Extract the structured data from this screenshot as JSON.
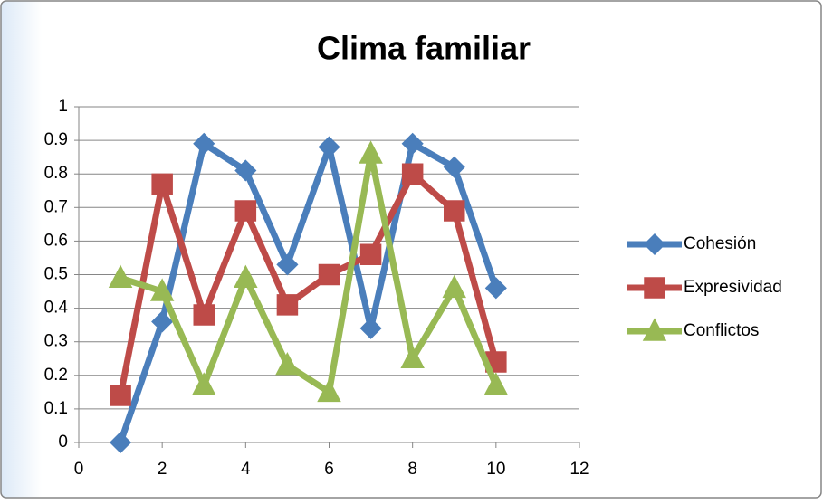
{
  "chart_data": {
    "type": "line",
    "title": "Clima familiar",
    "x": [
      1,
      2,
      3,
      4,
      5,
      6,
      7,
      8,
      9,
      10
    ],
    "series": [
      {
        "name": "Cohesión",
        "color": "#4a7ebb",
        "marker": "diamond",
        "values": [
          0,
          0.36,
          0.89,
          0.81,
          0.53,
          0.88,
          0.34,
          0.89,
          0.82,
          0.46
        ]
      },
      {
        "name": "Expresividad",
        "color": "#be4b48",
        "marker": "square",
        "values": [
          0.14,
          0.77,
          0.38,
          0.69,
          0.41,
          0.5,
          0.56,
          0.8,
          0.69,
          0.24
        ]
      },
      {
        "name": "Conflictos",
        "color": "#98b954",
        "marker": "triangle",
        "values": [
          0.49,
          0.45,
          0.17,
          0.49,
          0.23,
          0.15,
          0.86,
          0.25,
          0.46,
          0.17
        ]
      }
    ],
    "xlim": [
      0,
      12
    ],
    "xticks": [
      0,
      2,
      4,
      6,
      8,
      10,
      12
    ],
    "ylim": [
      0,
      1
    ],
    "yticks": [
      0,
      0.1,
      0.2,
      0.3,
      0.4,
      0.5,
      0.6,
      0.7,
      0.8,
      0.9,
      1
    ],
    "grid": true,
    "legend": "right"
  }
}
